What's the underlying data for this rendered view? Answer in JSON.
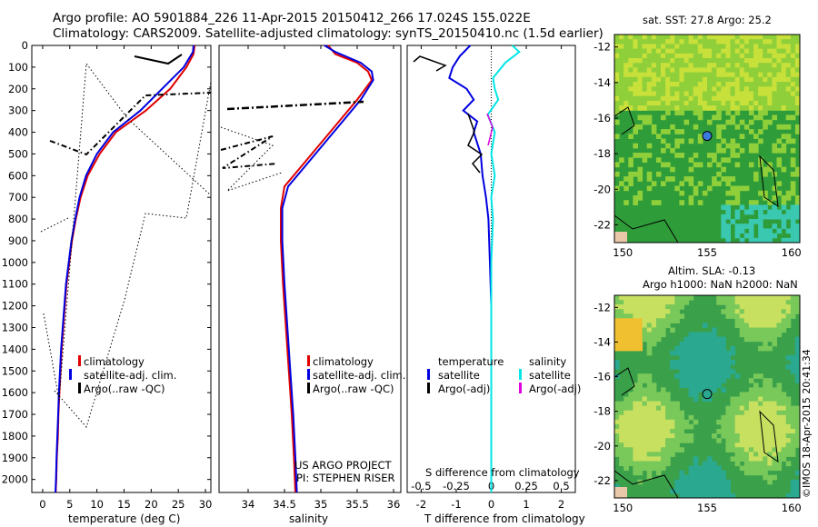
{
  "header": {
    "line1": "Argo profile: AO 5901884_226 11-Apr-2015 20150412_266 17.024S 155.022E",
    "line2": "Climatology: CARS2009. Satellite-adjusted climatology: synTS_20150410.nc (1.5d earlier)"
  },
  "colors": {
    "climatology": "#e00000",
    "satellite": "#0000e0",
    "argo": "#000000",
    "satellite_salinity": "#00e6e6",
    "argo_salinity_adj": "#e000e0"
  },
  "chart_data": [
    {
      "id": "temperature-profile",
      "type": "line",
      "xlabel": "temperature (deg C)",
      "xticks": [
        "0",
        "5",
        "10",
        "15",
        "20",
        "25",
        "30"
      ],
      "xlim": [
        -2,
        31
      ],
      "ylim": [
        0,
        2060
      ],
      "yticks": [
        "0",
        "100",
        "200",
        "300",
        "400",
        "500",
        "600",
        "700",
        "800",
        "900",
        "1000",
        "1100",
        "1200",
        "1300",
        "1400",
        "1500",
        "1600",
        "1700",
        "1800",
        "1900",
        "2000"
      ],
      "legend": [
        "climatology",
        "satellite-adj. clim.",
        "Argo(..raw -QC)"
      ],
      "series": [
        {
          "name": "climatology",
          "color": "#e00000",
          "points": [
            [
              28,
              0
            ],
            [
              27.8,
              40
            ],
            [
              26.5,
              100
            ],
            [
              23.5,
              200
            ],
            [
              19,
              300
            ],
            [
              13.5,
              400
            ],
            [
              10.5,
              500
            ],
            [
              8.3,
              600
            ],
            [
              7,
              700
            ],
            [
              6.1,
              800
            ],
            [
              5.4,
              900
            ],
            [
              4.9,
              1000
            ],
            [
              4.4,
              1100
            ],
            [
              4.1,
              1200
            ],
            [
              3.8,
              1300
            ],
            [
              3.5,
              1400
            ],
            [
              3.3,
              1500
            ],
            [
              3.1,
              1600
            ],
            [
              2.9,
              1700
            ],
            [
              2.8,
              1800
            ],
            [
              2.6,
              1900
            ],
            [
              2.5,
              2000
            ],
            [
              2.4,
              2060
            ]
          ]
        },
        {
          "name": "satellite-adj. clim.",
          "color": "#0000e0",
          "points": [
            [
              27.8,
              0
            ],
            [
              27.7,
              30
            ],
            [
              26,
              100
            ],
            [
              22,
              200
            ],
            [
              18,
              300
            ],
            [
              13,
              400
            ],
            [
              10,
              500
            ],
            [
              8,
              600
            ],
            [
              6.8,
              700
            ],
            [
              6,
              800
            ],
            [
              5.3,
              900
            ],
            [
              4.8,
              1000
            ],
            [
              4.3,
              1100
            ],
            [
              4,
              1200
            ],
            [
              3.7,
              1300
            ],
            [
              3.4,
              1400
            ],
            [
              3.2,
              1500
            ],
            [
              3,
              1600
            ],
            [
              2.85,
              1700
            ],
            [
              2.7,
              1800
            ],
            [
              2.55,
              1900
            ],
            [
              2.45,
              2000
            ],
            [
              2.35,
              2060
            ]
          ]
        }
      ]
    },
    {
      "id": "salinity-profile",
      "type": "line",
      "xlabel": "salinity",
      "xticks": [
        "34",
        "34.5",
        "35",
        "35.5",
        "36"
      ],
      "xlim": [
        33.6,
        36.1
      ],
      "ylim": [
        0,
        2060
      ],
      "legend": [
        "climatology",
        "satellite-adj. clim.",
        "Argo(..raw -QC)"
      ],
      "annotation": [
        "US ARGO PROJECT",
        "PI: STEPHEN RISER"
      ],
      "series": [
        {
          "name": "climatology",
          "color": "#e00000",
          "points": [
            [
              35.1,
              0
            ],
            [
              35.2,
              40
            ],
            [
              35.5,
              80
            ],
            [
              35.65,
              120
            ],
            [
              35.7,
              160
            ],
            [
              35.5,
              250
            ],
            [
              35.25,
              350
            ],
            [
              35,
              450
            ],
            [
              34.75,
              550
            ],
            [
              34.5,
              650
            ],
            [
              34.45,
              750
            ],
            [
              34.45,
              900
            ],
            [
              34.48,
              1100
            ],
            [
              34.52,
              1300
            ],
            [
              34.56,
              1500
            ],
            [
              34.6,
              1700
            ],
            [
              34.63,
              1900
            ],
            [
              34.65,
              2060
            ]
          ]
        },
        {
          "name": "satellite-adj. clim.",
          "color": "#0000e0",
          "points": [
            [
              35.05,
              0
            ],
            [
              35.2,
              30
            ],
            [
              35.55,
              80
            ],
            [
              35.7,
              120
            ],
            [
              35.72,
              160
            ],
            [
              35.55,
              250
            ],
            [
              35.3,
              350
            ],
            [
              35.05,
              450
            ],
            [
              34.8,
              550
            ],
            [
              34.55,
              650
            ],
            [
              34.47,
              750
            ],
            [
              34.47,
              900
            ],
            [
              34.5,
              1100
            ],
            [
              34.54,
              1300
            ],
            [
              34.58,
              1500
            ],
            [
              34.62,
              1700
            ],
            [
              34.65,
              1900
            ],
            [
              34.67,
              2060
            ]
          ]
        }
      ]
    },
    {
      "id": "difference-profile",
      "type": "line",
      "xlabel": "T difference from climatology",
      "xlabel_top": "S difference from climatology",
      "xticks": [
        "-2",
        "-1",
        "0",
        "1",
        "2"
      ],
      "xticks_top": [
        "-0.5",
        "-0.25",
        "0",
        "0.25",
        "0.5"
      ],
      "xlim": [
        -2.4,
        2.4
      ],
      "ylim": [
        0,
        2060
      ],
      "legend_left_title": "temperature",
      "legend_right_title": "salinity",
      "legend": [
        "satellite",
        "Argo(-adj)",
        "satellite",
        "Argo(-adj)"
      ],
      "series": [
        {
          "name": "temperature satellite",
          "color": "#0000e0",
          "points": [
            [
              -0.6,
              0
            ],
            [
              -0.9,
              50
            ],
            [
              -1.1,
              100
            ],
            [
              -1.2,
              150
            ],
            [
              -0.7,
              200
            ],
            [
              -0.5,
              250
            ],
            [
              -0.8,
              300
            ],
            [
              -0.4,
              350
            ],
            [
              -0.5,
              400
            ],
            [
              -0.3,
              500
            ],
            [
              -0.25,
              600
            ],
            [
              -0.15,
              700
            ],
            [
              -0.08,
              800
            ],
            [
              -0.04,
              1000
            ],
            [
              0,
              1200
            ],
            [
              0,
              1600
            ],
            [
              0,
              2060
            ]
          ]
        },
        {
          "name": "salinity satellite",
          "color": "#00e6e6",
          "points": [
            [
              0.6,
              0
            ],
            [
              0.8,
              30
            ],
            [
              0.4,
              80
            ],
            [
              0.05,
              150
            ],
            [
              0.1,
              200
            ],
            [
              0.2,
              250
            ],
            [
              -0.1,
              320
            ],
            [
              0.1,
              400
            ],
            [
              0.0,
              500
            ],
            [
              0.1,
              600
            ],
            [
              0.0,
              700
            ],
            [
              0.05,
              800
            ],
            [
              0.0,
              1000
            ],
            [
              0.0,
              2060
            ]
          ]
        }
      ]
    },
    {
      "id": "sst-map",
      "type": "heatmap",
      "title": "sat. SST: 27.8 Argo: 25.2",
      "xticks": [
        "150",
        "155",
        "160"
      ],
      "yticks": [
        "-12",
        "-14",
        "-16",
        "-18",
        "-20",
        "-22"
      ],
      "xlim": [
        149.5,
        160.5
      ],
      "ylim": [
        -23,
        -11.3
      ],
      "marker": [
        155,
        -17
      ]
    },
    {
      "id": "sla-map",
      "type": "heatmap",
      "title": "Altim. SLA: -0.13",
      "subtitle": "Argo h1000: NaN h2000: NaN",
      "xticks": [
        "150",
        "155",
        "160"
      ],
      "yticks": [
        "-12",
        "-14",
        "-16",
        "-18",
        "-20",
        "-22"
      ],
      "xlim": [
        149.5,
        160.5
      ],
      "ylim": [
        -23,
        -11.3
      ],
      "marker": [
        155,
        -17
      ]
    }
  ],
  "credit": "©IMOS 18-Apr-2015 20:41:34"
}
